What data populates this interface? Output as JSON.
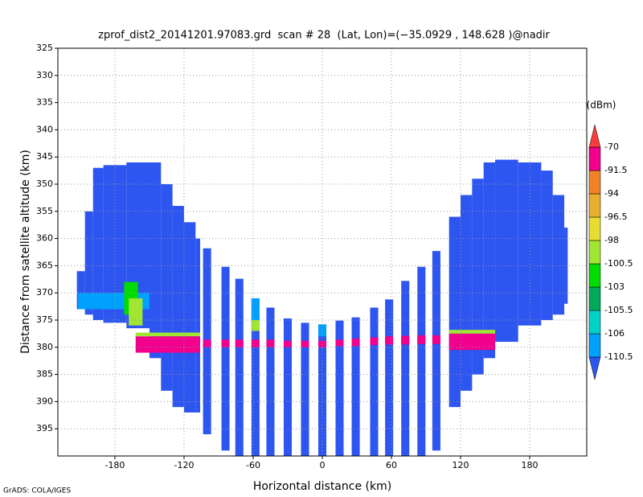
{
  "chart_data": {
    "type": "field",
    "title": "zprof_dist2_20141201.97083.grd  scan # 28  (Lat, Lon)=(−35.0929 , 148.628 )@nadir",
    "x_label": "Horizontal distance (km)",
    "y_label": "Distance from satellite altitude (km)",
    "credit": "GrADS: COLA/IGES",
    "xlim": [
      -229.5,
      229.5
    ],
    "ylim": [
      325,
      400
    ],
    "y_reversed": true,
    "xticks": [
      -180,
      -120,
      -60,
      0,
      60,
      120,
      180
    ],
    "yticks": [
      325,
      330,
      335,
      340,
      345,
      350,
      355,
      360,
      365,
      370,
      375,
      380,
      385,
      390,
      395
    ],
    "grid": true,
    "colorbar": {
      "unit": "(dBm)",
      "levels": [
        -110.5,
        -106,
        -105.5,
        -103,
        -100.5,
        -98,
        -96.5,
        -94,
        -91.5,
        -70
      ],
      "colors": [
        "#2d55f0",
        "#00a0ff",
        "#00d2c8",
        "#00aa5a",
        "#00dc00",
        "#a0e632",
        "#e6dc32",
        "#e6af2d",
        "#f08228",
        "#f0008c",
        "#fa3c3c"
      ]
    },
    "cells": [
      [
        -213,
        -206,
        366,
        373,
        -115
      ],
      [
        -206,
        -199,
        355,
        374,
        -115
      ],
      [
        -199,
        -190,
        347,
        375,
        -115
      ],
      [
        -190,
        -170,
        346.5,
        375.5,
        -115
      ],
      [
        -170,
        -150,
        346,
        376.5,
        -115
      ],
      [
        -150,
        -140,
        346,
        382,
        -115
      ],
      [
        -140,
        -130,
        350,
        388,
        -115
      ],
      [
        -130,
        -120,
        354,
        391,
        -115
      ],
      [
        -120,
        -110,
        357,
        392,
        -115
      ],
      [
        -110,
        -106,
        360,
        392,
        -115
      ],
      [
        110,
        120,
        356,
        391,
        -115
      ],
      [
        120,
        130,
        352,
        388,
        -115
      ],
      [
        130,
        140,
        349,
        385,
        -115
      ],
      [
        140,
        150,
        346,
        382,
        -115
      ],
      [
        150,
        170,
        345.5,
        379,
        -115
      ],
      [
        170,
        190,
        346,
        376,
        -115
      ],
      [
        190,
        200,
        347.5,
        375,
        -115
      ],
      [
        200,
        210,
        352,
        374,
        -115
      ],
      [
        210,
        213,
        358,
        372,
        -115
      ],
      [
        -103.5,
        -96.5,
        361.8,
        396,
        -115
      ],
      [
        -87.5,
        -80.5,
        365.2,
        399,
        -115
      ],
      [
        -75.5,
        -68.5,
        367.4,
        400,
        -115
      ],
      [
        -61.5,
        -54.5,
        371,
        400,
        -115
      ],
      [
        -48.5,
        -41.5,
        372.7,
        400,
        -115
      ],
      [
        -33.5,
        -26.5,
        374.7,
        400,
        -115
      ],
      [
        -18.5,
        -11.5,
        375.5,
        400,
        -115
      ],
      [
        -3.5,
        3.5,
        375.8,
        400,
        -115
      ],
      [
        11.5,
        18.5,
        375.1,
        400,
        -115
      ],
      [
        25.5,
        32.5,
        374.5,
        400,
        -115
      ],
      [
        41.5,
        48.5,
        372.7,
        400,
        -115
      ],
      [
        54.5,
        61.5,
        371.2,
        400,
        -115
      ],
      [
        68.5,
        75.5,
        367.8,
        400,
        -115
      ],
      [
        82.5,
        89.5,
        365.2,
        400,
        -115
      ],
      [
        95.5,
        102.5,
        362.3,
        399,
        -115
      ],
      [
        -212,
        -150,
        370,
        373,
        -109
      ],
      [
        -172,
        -160,
        368,
        374,
        -102
      ],
      [
        -168,
        -156,
        371,
        376,
        -99
      ],
      [
        -61.5,
        -54.5,
        371,
        375,
        -109
      ],
      [
        -61.5,
        -54.5,
        375,
        377,
        -100
      ],
      [
        -3.5,
        3.5,
        375.8,
        378,
        -109
      ],
      [
        -162,
        -106,
        377.3,
        378,
        -100
      ],
      [
        -162,
        -106,
        378,
        381,
        -85
      ],
      [
        110,
        150,
        376.8,
        377.5,
        -100
      ],
      [
        110,
        150,
        377.5,
        380.5,
        -85
      ],
      [
        -103.5,
        -96.5,
        378.6,
        380,
        -85
      ],
      [
        -87.5,
        -80.5,
        378.6,
        380,
        -85
      ],
      [
        -75.5,
        -68.5,
        378.6,
        380,
        -85
      ],
      [
        -61.5,
        -54.5,
        378.6,
        380,
        -85
      ],
      [
        -48.5,
        -41.5,
        378.6,
        380,
        -85
      ],
      [
        -33.5,
        -26.5,
        378.8,
        380,
        -85
      ],
      [
        -18.5,
        -11.5,
        378.8,
        380,
        -85
      ],
      [
        -3.5,
        3.5,
        378.8,
        380,
        -85
      ],
      [
        11.5,
        18.5,
        378.6,
        379.8,
        -85
      ],
      [
        25.5,
        32.5,
        378.4,
        379.8,
        -85
      ],
      [
        41.5,
        48.5,
        378.2,
        379.6,
        -85
      ],
      [
        54.5,
        61.5,
        378,
        379.5,
        -85
      ],
      [
        68.5,
        75.5,
        377.9,
        379.5,
        -85
      ],
      [
        82.5,
        89.5,
        377.8,
        379.4,
        -85
      ],
      [
        95.5,
        102.5,
        377.8,
        379.4,
        -85
      ]
    ]
  }
}
